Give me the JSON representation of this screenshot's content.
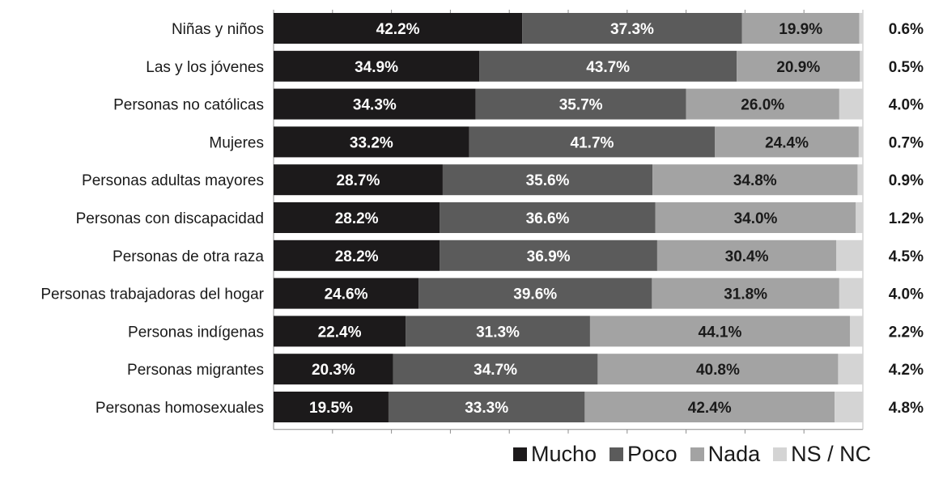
{
  "chart_data": {
    "type": "bar",
    "orientation": "horizontal",
    "stacked": true,
    "xlim": [
      0,
      100
    ],
    "categories": [
      "Niñas y niños",
      "Las y los jóvenes",
      "Personas no católicas",
      "Mujeres",
      "Personas adultas mayores",
      "Personas con discapacidad",
      "Personas de otra raza",
      "Personas trabajadoras del hogar",
      "Personas indígenas",
      "Personas migrantes",
      "Personas homosexuales"
    ],
    "series": [
      {
        "name": "Mucho",
        "color": "#1c1a1b",
        "values": [
          42.2,
          34.9,
          34.3,
          33.2,
          28.7,
          28.2,
          28.2,
          24.6,
          22.4,
          20.3,
          19.5
        ]
      },
      {
        "name": "Poco",
        "color": "#5b5b5b",
        "values": [
          37.3,
          43.7,
          35.7,
          41.7,
          35.6,
          36.6,
          36.9,
          39.6,
          31.3,
          34.7,
          33.3
        ]
      },
      {
        "name": "Nada",
        "color": "#a3a3a3",
        "values": [
          19.9,
          20.9,
          26.0,
          24.4,
          34.8,
          34.0,
          30.4,
          31.8,
          44.1,
          40.8,
          42.4
        ]
      },
      {
        "name": "NS / NC",
        "color": "#d4d4d4",
        "values": [
          0.6,
          0.5,
          4.0,
          0.7,
          0.9,
          1.2,
          4.5,
          4.0,
          2.2,
          4.2,
          4.8
        ]
      }
    ],
    "labels": {
      "Mucho": [
        "42.2%",
        "34.9%",
        "34.3%",
        "33.2%",
        "28.7%",
        "28.2%",
        "28.2%",
        "24.6%",
        "22.4%",
        "20.3%",
        "19.5%"
      ],
      "Poco": [
        "37.3%",
        "43.7%",
        "35.7%",
        "41.7%",
        "35.6%",
        "36.6%",
        "36.9%",
        "39.6%",
        "31.3%",
        "34.7%",
        "33.3%"
      ],
      "Nada": [
        "19.9%",
        "20.9%",
        "26.0%",
        "24.4%",
        "34.8%",
        "34.0%",
        "30.4%",
        "31.8%",
        "44.1%",
        "40.8%",
        "42.4%"
      ],
      "NS / NC": [
        "0.6%",
        "0.5%",
        "4.0%",
        "0.7%",
        "0.9%",
        "1.2%",
        "4.5%",
        "4.0%",
        "2.2%",
        "4.2%",
        "4.8%"
      ]
    },
    "label_colors": {
      "Mucho": "#ffffff",
      "Poco": "#ffffff",
      "Nada": "#1a1a1a",
      "NS / NC": "#1a1a1a"
    },
    "legend_position": "bottom-right",
    "grid": false
  }
}
